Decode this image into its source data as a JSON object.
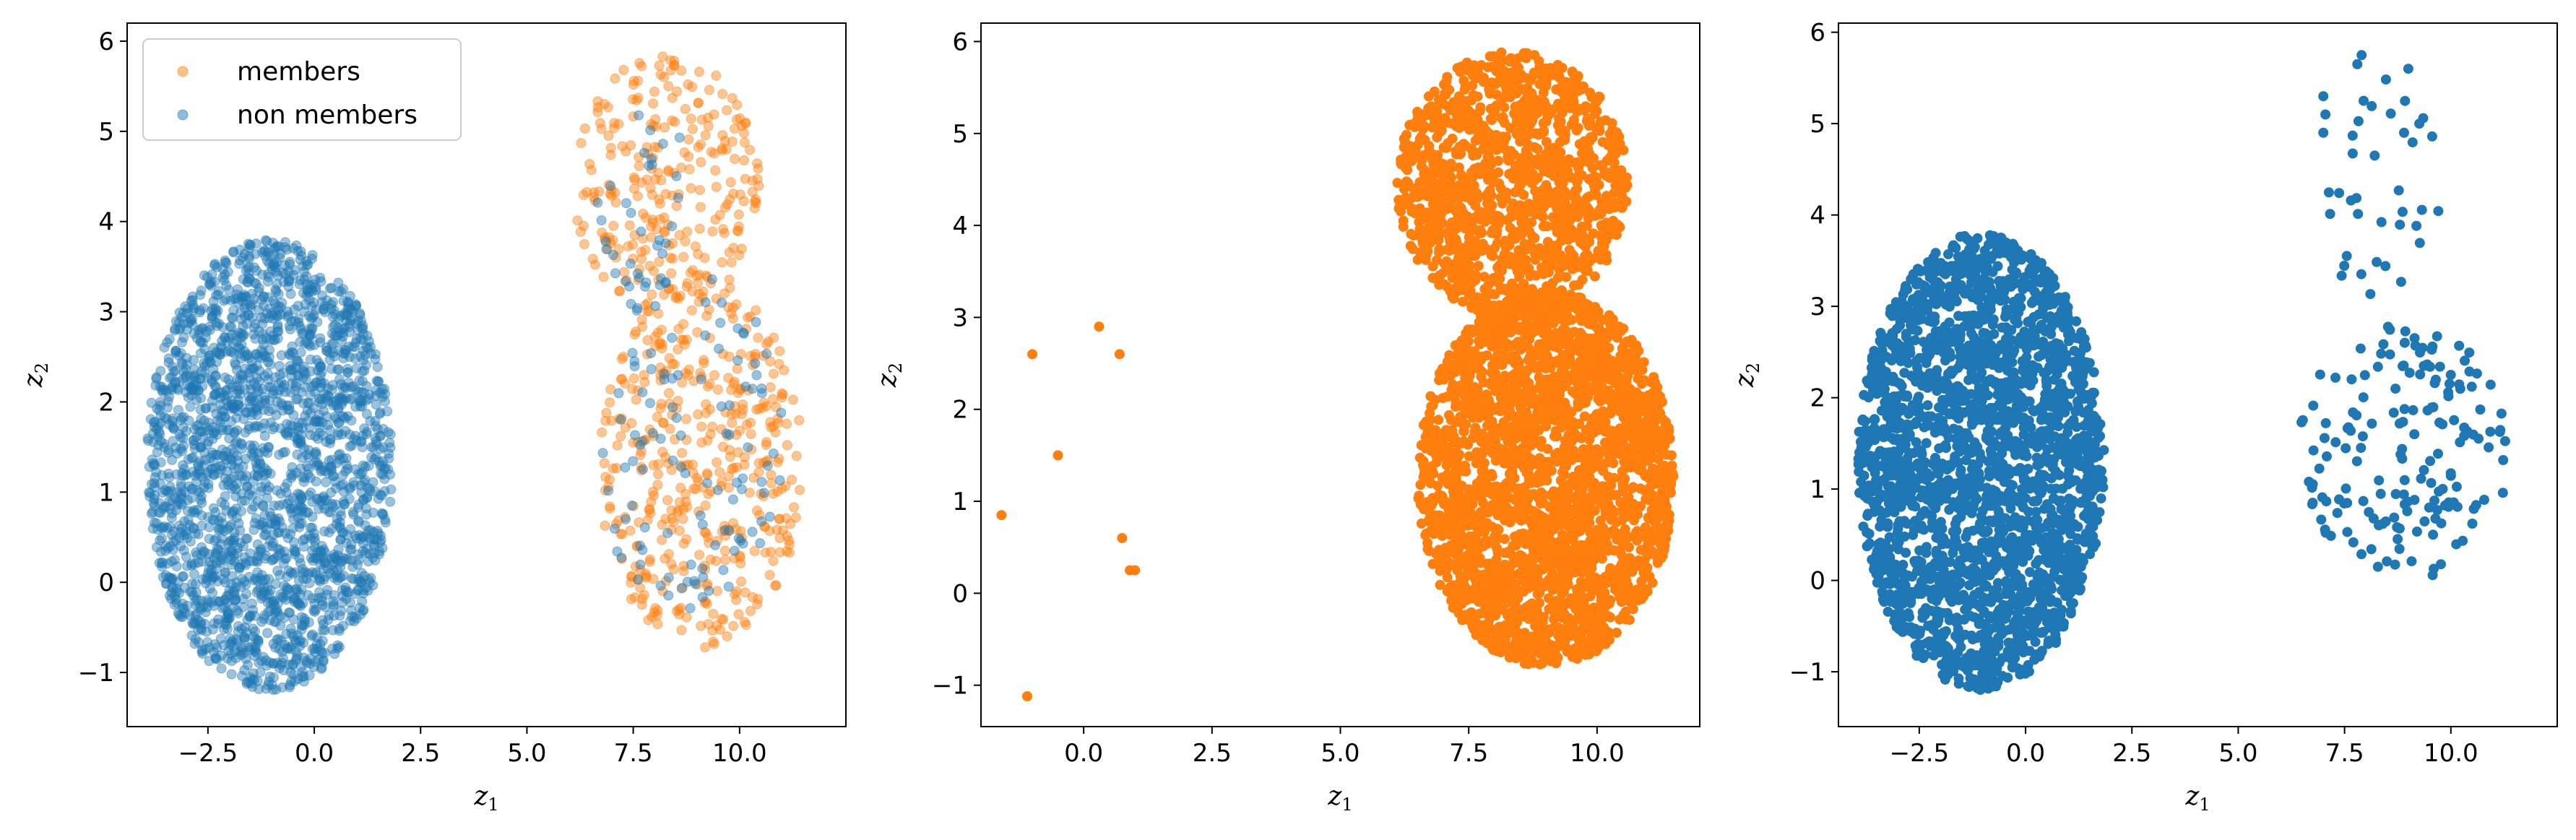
{
  "chart_data": [
    {
      "type": "scatter",
      "xlabel": "z",
      "xlabel_sub": "1",
      "ylabel": "z",
      "ylabel_sub": "2",
      "xlim": [
        -4.4,
        12.5
      ],
      "ylim": [
        -1.6,
        6.2
      ],
      "xticks": [
        -2.5,
        0.0,
        2.5,
        5.0,
        7.5,
        10.0
      ],
      "xtick_labels": [
        "−2.5",
        "0.0",
        "2.5",
        "5.0",
        "7.5",
        "10.0"
      ],
      "yticks": [
        -1,
        0,
        1,
        2,
        3,
        4,
        5,
        6
      ],
      "ytick_labels": [
        "−1",
        "0",
        "1",
        "2",
        "3",
        "4",
        "5",
        "6"
      ],
      "grid": false,
      "legend": {
        "placement": "upper-left",
        "entries": [
          {
            "label": "members",
            "color": "#ff7f0e"
          },
          {
            "label": "non members",
            "color": "#1f77b4"
          }
        ]
      },
      "series": [
        {
          "name": "members",
          "color": "#ff7f0e",
          "alpha": 0.45,
          "clusters": [
            {
              "shape": "ellipse",
              "cx": 8.3,
              "cy": 4.4,
              "rx": 2.2,
              "ry": 1.45,
              "n": 260
            },
            {
              "shape": "ellipse",
              "cx": 9.1,
              "cy": 1.3,
              "rx": 2.4,
              "ry": 2.05,
              "n": 420
            }
          ]
        },
        {
          "name": "non members",
          "color": "#1f77b4",
          "alpha": 0.45,
          "clusters": [
            {
              "shape": "ellipse",
              "cx": -1.05,
              "cy": 1.3,
              "rx": 2.9,
              "ry": 2.5,
              "n": 2200
            },
            {
              "shape": "ellipse",
              "cx": 8.8,
              "cy": 1.6,
              "rx": 2.3,
              "ry": 1.9,
              "n": 110
            },
            {
              "shape": "ellipse",
              "cx": 7.8,
              "cy": 4.2,
              "rx": 1.2,
              "ry": 1.0,
              "n": 35
            }
          ]
        }
      ]
    },
    {
      "type": "scatter",
      "xlabel": "z",
      "xlabel_sub": "1",
      "ylabel": "z",
      "ylabel_sub": "2",
      "xlim": [
        -2.0,
        12.0
      ],
      "ylim": [
        -1.45,
        6.2
      ],
      "xticks": [
        0.0,
        2.5,
        5.0,
        7.5,
        10.0
      ],
      "xtick_labels": [
        "0.0",
        "2.5",
        "5.0",
        "7.5",
        "10.0"
      ],
      "yticks": [
        -1,
        0,
        1,
        2,
        3,
        4,
        5,
        6
      ],
      "ytick_labels": [
        "−1",
        "0",
        "1",
        "2",
        "3",
        "4",
        "5",
        "6"
      ],
      "grid": false,
      "series": [
        {
          "name": "members",
          "color": "#ff7f0e",
          "alpha": 1.0,
          "clusters": [
            {
              "shape": "ellipse",
              "cx": 8.35,
              "cy": 4.45,
              "rx": 2.25,
              "ry": 1.45,
              "n": 1300
            },
            {
              "shape": "ellipse",
              "cx": 9.0,
              "cy": 1.25,
              "rx": 2.5,
              "ry": 2.05,
              "n": 2600
            }
          ],
          "points": [
            [
              -1.6,
              0.85
            ],
            [
              -1.0,
              2.6
            ],
            [
              -0.5,
              1.5
            ],
            [
              0.3,
              2.9
            ],
            [
              0.7,
              2.6
            ],
            [
              0.75,
              0.6
            ],
            [
              0.9,
              0.25
            ],
            [
              1.0,
              0.25
            ],
            [
              -1.1,
              -1.12
            ]
          ]
        }
      ]
    },
    {
      "type": "scatter",
      "xlabel": "z",
      "xlabel_sub": "1",
      "ylabel": "z",
      "ylabel_sub": "2",
      "xlim": [
        -4.4,
        12.5
      ],
      "ylim": [
        -1.6,
        6.1
      ],
      "xticks": [
        -2.5,
        0.0,
        2.5,
        5.0,
        7.5,
        10.0
      ],
      "xtick_labels": [
        "−2.5",
        "0.0",
        "2.5",
        "5.0",
        "7.5",
        "10.0"
      ],
      "yticks": [
        -1,
        0,
        1,
        2,
        3,
        4,
        5,
        6
      ],
      "ytick_labels": [
        "−1",
        "0",
        "1",
        "2",
        "3",
        "4",
        "5",
        "6"
      ],
      "grid": false,
      "series": [
        {
          "name": "non members",
          "color": "#1f77b4",
          "alpha": 1.0,
          "clusters": [
            {
              "shape": "ellipse",
              "cx": -1.05,
              "cy": 1.3,
              "rx": 2.9,
              "ry": 2.5,
              "n": 2400
            },
            {
              "shape": "ellipse",
              "cx": 8.9,
              "cy": 1.4,
              "rx": 2.5,
              "ry": 1.4,
              "n": 170
            },
            {
              "shape": "ellipse",
              "cx": 8.3,
              "cy": 4.3,
              "rx": 1.5,
              "ry": 1.2,
              "n": 35
            }
          ],
          "points": [
            [
              7.9,
              5.75
            ],
            [
              7.8,
              5.65
            ],
            [
              9.0,
              5.6
            ],
            [
              7.0,
              5.3
            ],
            [
              7.05,
              5.1
            ],
            [
              8.9,
              4.9
            ],
            [
              7.0,
              4.9
            ]
          ]
        }
      ]
    }
  ]
}
